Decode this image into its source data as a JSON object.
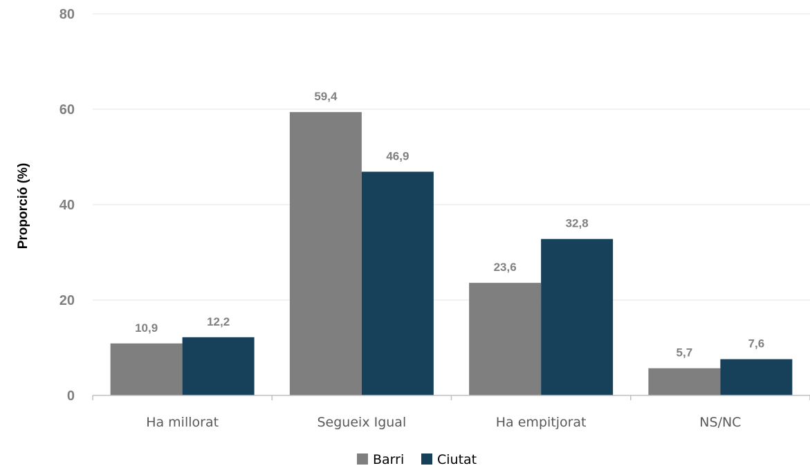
{
  "chart_data": {
    "type": "bar",
    "title": "",
    "xlabel": "",
    "ylabel": "Proporció (%)",
    "ylim": [
      0,
      80
    ],
    "yticks": [
      0,
      20,
      40,
      60,
      80
    ],
    "grid": true,
    "legend_position": "bottom",
    "categories": [
      "Ha millorat",
      "Segueix Igual",
      "Ha empitjorat",
      "NS/NC"
    ],
    "series": [
      {
        "name": "Barri",
        "color": "#7f7f7f",
        "values": [
          10.9,
          59.4,
          23.6,
          5.7
        ],
        "labels": [
          "10,9",
          "59,4",
          "23,6",
          "5,7"
        ]
      },
      {
        "name": "Ciutat",
        "color": "#17405a",
        "values": [
          12.2,
          46.9,
          32.8,
          7.6
        ],
        "labels": [
          "12,2",
          "46,9",
          "32,8",
          "7,6"
        ]
      }
    ]
  }
}
